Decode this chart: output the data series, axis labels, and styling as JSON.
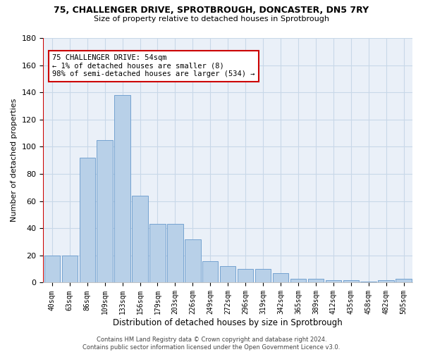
{
  "title1": "75, CHALLENGER DRIVE, SPROTBROUGH, DONCASTER, DN5 7RY",
  "title2": "Size of property relative to detached houses in Sprotbrough",
  "xlabel": "Distribution of detached houses by size in Sprotbrough",
  "ylabel": "Number of detached properties",
  "categories": [
    "40sqm",
    "63sqm",
    "86sqm",
    "109sqm",
    "133sqm",
    "156sqm",
    "179sqm",
    "203sqm",
    "226sqm",
    "249sqm",
    "272sqm",
    "296sqm",
    "319sqm",
    "342sqm",
    "365sqm",
    "389sqm",
    "412sqm",
    "435sqm",
    "458sqm",
    "482sqm",
    "505sqm"
  ],
  "values": [
    20,
    20,
    92,
    105,
    138,
    64,
    43,
    43,
    32,
    16,
    12,
    10,
    10,
    7,
    3,
    3,
    2,
    2,
    1,
    2,
    3
  ],
  "bar_color": "#b8d0e8",
  "bar_edge_color": "#6699cc",
  "highlight_color": "#cc0000",
  "annotation_line1": "75 CHALLENGER DRIVE: 54sqm",
  "annotation_line2": "← 1% of detached houses are smaller (8)",
  "annotation_line3": "98% of semi-detached houses are larger (534) →",
  "annotation_box_color": "#ffffff",
  "annotation_box_edge": "#cc0000",
  "ylim": [
    0,
    180
  ],
  "yticks": [
    0,
    20,
    40,
    60,
    80,
    100,
    120,
    140,
    160,
    180
  ],
  "footer_text": "Contains HM Land Registry data © Crown copyright and database right 2024.\nContains public sector information licensed under the Open Government Licence v3.0.",
  "grid_color": "#c8d8e8",
  "background_color": "#eaf0f8"
}
